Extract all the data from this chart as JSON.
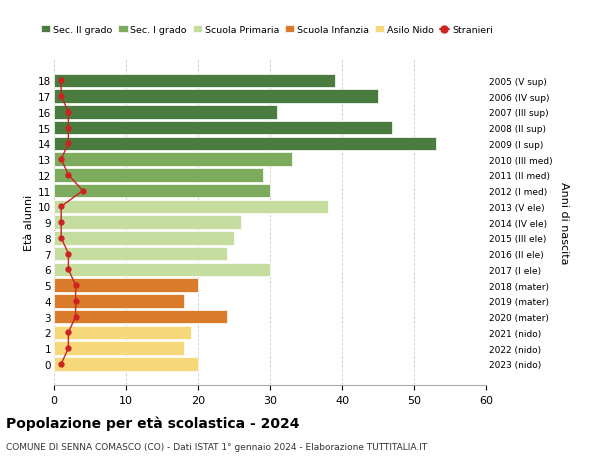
{
  "ages": [
    18,
    17,
    16,
    15,
    14,
    13,
    12,
    11,
    10,
    9,
    8,
    7,
    6,
    5,
    4,
    3,
    2,
    1,
    0
  ],
  "bar_values": [
    39,
    45,
    31,
    47,
    53,
    33,
    29,
    30,
    38,
    26,
    25,
    24,
    30,
    20,
    18,
    24,
    19,
    18,
    20
  ],
  "stranieri_values": [
    1,
    1,
    2,
    2,
    2,
    1,
    2,
    4,
    1,
    1,
    1,
    2,
    2,
    3,
    3,
    3,
    2,
    2,
    1
  ],
  "bar_colors": [
    "#4a7c3f",
    "#4a7c3f",
    "#4a7c3f",
    "#4a7c3f",
    "#4a7c3f",
    "#7dab5e",
    "#7dab5e",
    "#7dab5e",
    "#c5dea0",
    "#c5dea0",
    "#c5dea0",
    "#c5dea0",
    "#c5dea0",
    "#d97b2b",
    "#d97b2b",
    "#d97b2b",
    "#f5d87a",
    "#f5d87a",
    "#f5d87a"
  ],
  "right_labels": [
    "2005 (V sup)",
    "2006 (IV sup)",
    "2007 (III sup)",
    "2008 (II sup)",
    "2009 (I sup)",
    "2010 (III med)",
    "2011 (II med)",
    "2012 (I med)",
    "2013 (V ele)",
    "2014 (IV ele)",
    "2015 (III ele)",
    "2016 (II ele)",
    "2017 (I ele)",
    "2018 (mater)",
    "2019 (mater)",
    "2020 (mater)",
    "2021 (nido)",
    "2022 (nido)",
    "2023 (nido)"
  ],
  "legend_labels": [
    "Sec. II grado",
    "Sec. I grado",
    "Scuola Primaria",
    "Scuola Infanzia",
    "Asilo Nido",
    "Stranieri"
  ],
  "legend_colors": [
    "#4a7c3f",
    "#7dab5e",
    "#c5dea0",
    "#d97b2b",
    "#f5d87a",
    "#cc2222"
  ],
  "ylabel_left": "Età alunni",
  "ylabel_right": "Anni di nascita",
  "title_bold": "Popolazione per età scolastica - 2024",
  "subtitle": "COMUNE DI SENNA COMASCO (CO) - Dati ISTAT 1° gennaio 2024 - Elaborazione TUTTITALIA.IT",
  "xlim": [
    0,
    60
  ],
  "xticks": [
    0,
    10,
    20,
    30,
    40,
    50,
    60
  ],
  "stranieri_color": "#cc2222",
  "grid_color": "#cccccc"
}
